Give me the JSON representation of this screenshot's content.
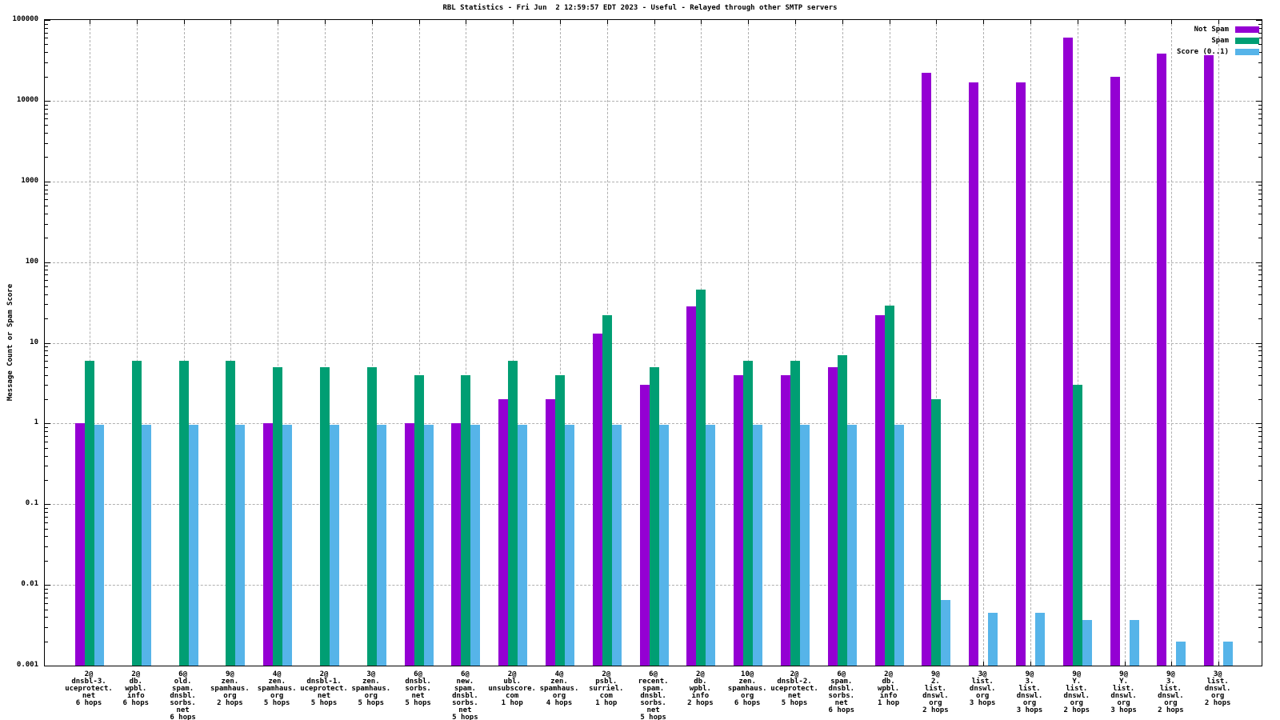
{
  "chart_data": {
    "type": "bar",
    "title": "RBL Statistics - Fri Jun  2 12:59:57 EDT 2023 - Useful - Relayed through other SMTP servers",
    "xlabel": "",
    "ylabel": "Message Count or Spam Score",
    "yscale": "log",
    "ylim": [
      0.001,
      100000
    ],
    "ytick_labels": [
      "100000",
      "10000",
      "1000",
      "100",
      "10",
      "1",
      "0.1",
      "0.01",
      "0.001"
    ],
    "grid": true,
    "legend_position": "top-right",
    "legend": [
      {
        "label": "Not Spam",
        "color": "#9400d3"
      },
      {
        "label": "Spam",
        "color": "#009e73"
      },
      {
        "label": "Score (0..1)",
        "color": "#56b4e9"
      }
    ],
    "categories": [
      [
        "2@",
        "dnsbl-3.",
        "uceprotect.",
        "net",
        "6 hops"
      ],
      [
        "2@",
        "db.",
        "wpbl.",
        "info",
        "6 hops"
      ],
      [
        "6@",
        "old.",
        "spam.",
        "dnsbl.",
        "sorbs.",
        "net",
        "6 hops"
      ],
      [
        "9@",
        "zen.",
        "spamhaus.",
        "org",
        "2 hops"
      ],
      [
        "4@",
        "zen.",
        "spamhaus.",
        "org",
        "5 hops"
      ],
      [
        "2@",
        "dnsbl-1.",
        "uceprotect.",
        "net",
        "5 hops"
      ],
      [
        "3@",
        "zen.",
        "spamhaus.",
        "org",
        "5 hops"
      ],
      [
        "6@",
        "dnsbl.",
        "sorbs.",
        "net",
        "5 hops"
      ],
      [
        "6@",
        "new.",
        "spam.",
        "dnsbl.",
        "sorbs.",
        "net",
        "5 hops"
      ],
      [
        "2@",
        "ubl.",
        "unsubscore.",
        "com",
        "1 hop"
      ],
      [
        "4@",
        "zen.",
        "spamhaus.",
        "org",
        "4 hops"
      ],
      [
        "2@",
        "psbl.",
        "surriel.",
        "com",
        "1 hop"
      ],
      [
        "6@",
        "recent.",
        "spam.",
        "dnsbl.",
        "sorbs.",
        "net",
        "5 hops"
      ],
      [
        "2@",
        "db.",
        "wpbl.",
        "info",
        "2 hops"
      ],
      [
        "10@",
        "zen.",
        "spamhaus.",
        "org",
        "6 hops"
      ],
      [
        "2@",
        "dnsbl-2.",
        "uceprotect.",
        "net",
        "5 hops"
      ],
      [
        "6@",
        "spam.",
        "dnsbl.",
        "sorbs.",
        "net",
        "6 hops"
      ],
      [
        "2@",
        "db.",
        "wpbl.",
        "info",
        "1 hop"
      ],
      [
        "9@",
        "2.",
        "list.",
        "dnswl.",
        "org",
        "2 hops"
      ],
      [
        "3@",
        "list.",
        "dnswl.",
        "org",
        "3 hops"
      ],
      [
        "9@",
        "3.",
        "list.",
        "dnswl.",
        "org",
        "3 hops"
      ],
      [
        "9@",
        "Y.",
        "list.",
        "dnswl.",
        "org",
        "2 hops"
      ],
      [
        "9@",
        "Y.",
        "list.",
        "dnswl.",
        "org",
        "3 hops"
      ],
      [
        "9@",
        "3.",
        "list.",
        "dnswl.",
        "org",
        "2 hops"
      ],
      [
        "3@",
        "list.",
        "dnswl.",
        "org",
        "2 hops"
      ]
    ],
    "series": [
      {
        "key": "not_spam",
        "name": "Not Spam",
        "color": "#9400d3",
        "values": [
          1,
          null,
          null,
          null,
          1,
          null,
          null,
          1,
          1,
          2,
          2,
          13,
          3,
          28,
          4,
          4,
          5,
          22,
          22000,
          17000,
          17000,
          60000,
          20000,
          38000,
          37000
        ]
      },
      {
        "key": "spam",
        "name": "Spam",
        "color": "#009e73",
        "values": [
          6,
          6,
          6,
          6,
          5,
          5,
          5,
          4,
          4,
          6,
          4,
          22,
          5,
          46,
          6,
          6,
          7,
          29,
          2,
          null,
          null,
          3,
          null,
          null,
          null
        ]
      },
      {
        "key": "score",
        "name": "Score (0..1)",
        "color": "#56b4e9",
        "values": [
          0.97,
          0.97,
          0.97,
          0.97,
          0.97,
          0.97,
          0.97,
          0.97,
          0.97,
          0.97,
          0.97,
          0.97,
          0.97,
          0.97,
          0.97,
          0.97,
          0.97,
          0.97,
          0.0065,
          0.0045,
          0.0045,
          0.0037,
          0.0037,
          0.002,
          0.002
        ]
      }
    ]
  }
}
